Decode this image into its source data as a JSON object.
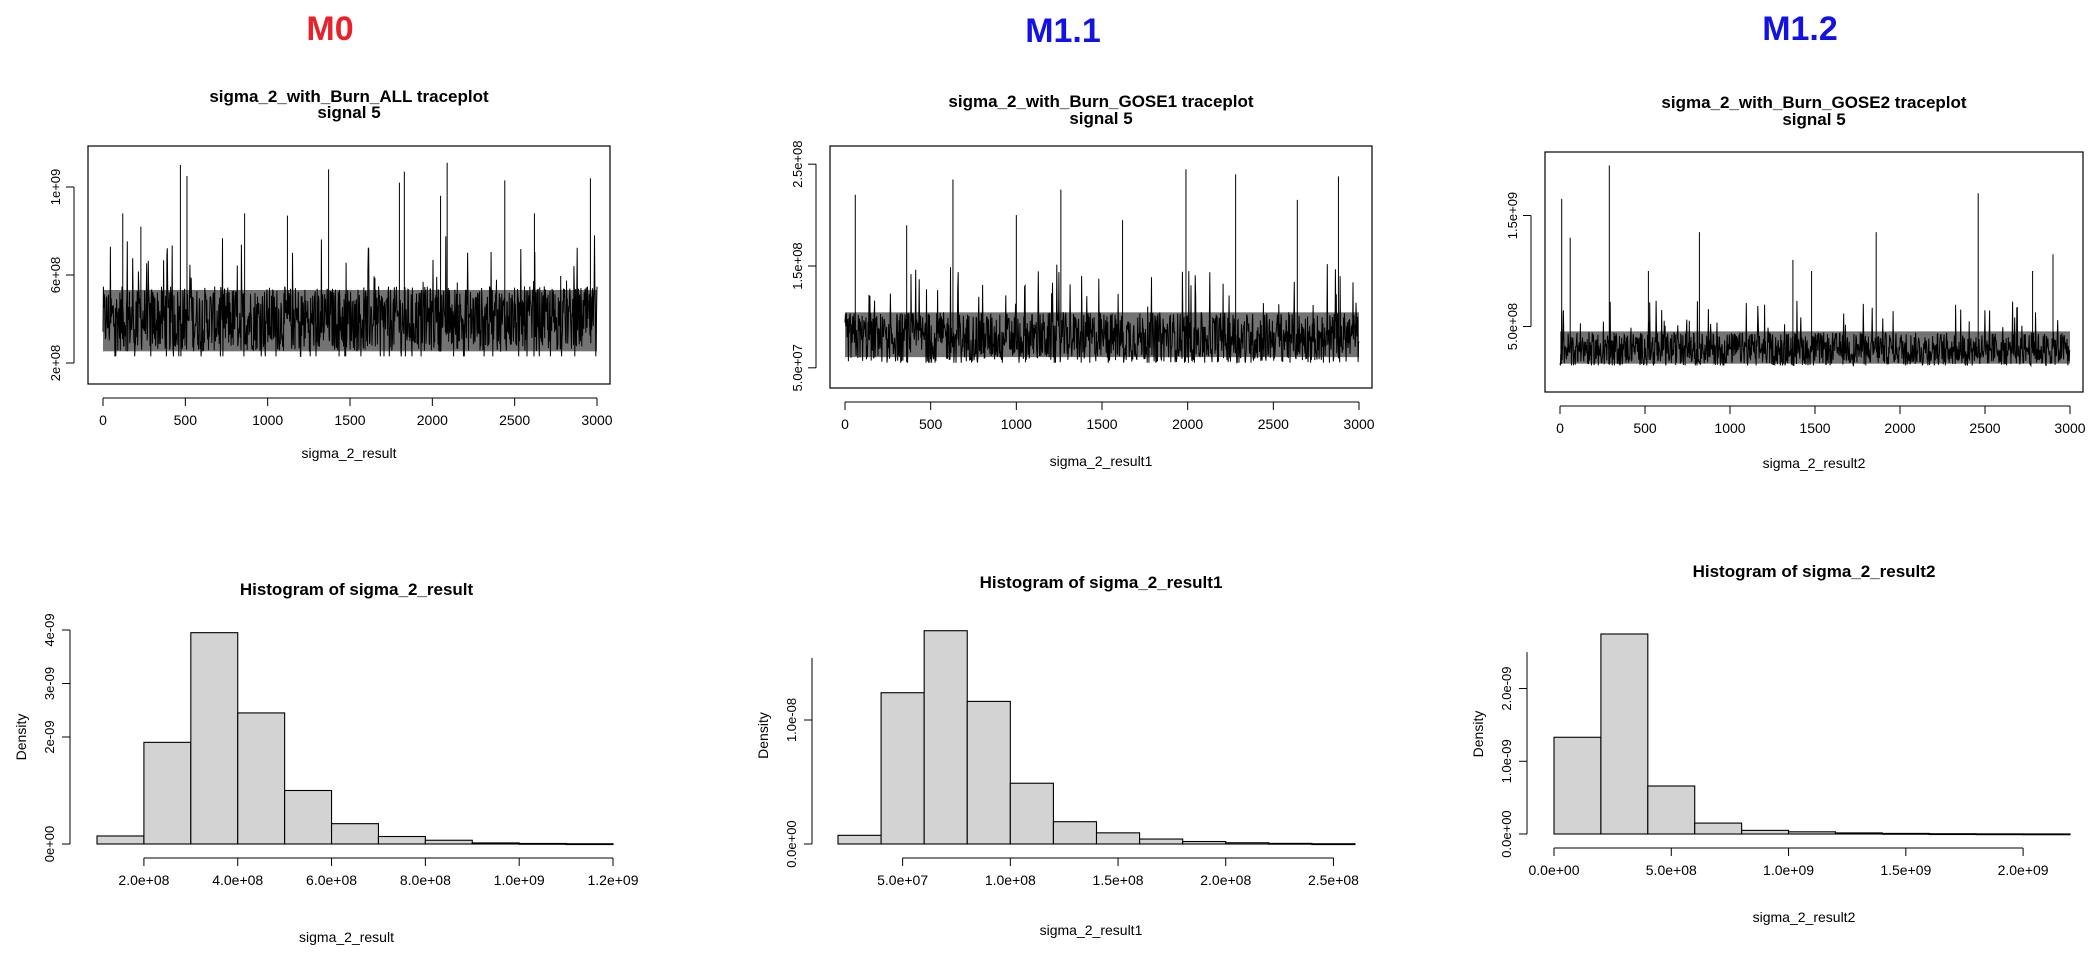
{
  "headers": [
    {
      "text": "M0",
      "color": "#e8212b"
    },
    {
      "text": "M1.1",
      "color": "#1212e6"
    },
    {
      "text": "M1.2",
      "color": "#1212e6"
    }
  ],
  "chart_data": [
    {
      "type": "line",
      "title": "sigma_2_with_Burn_ALL traceplot",
      "subtitle": "signal 5",
      "xlabel": "sigma_2_result",
      "ylabel": "",
      "xlim": [
        0,
        3000
      ],
      "ylim": [
        150000000,
        1150000000
      ],
      "xticks": [
        "0",
        "500",
        "1000",
        "1500",
        "2000",
        "2500",
        "3000"
      ],
      "xtick_values": [
        0,
        500,
        1000,
        1500,
        2000,
        2500,
        3000
      ],
      "yticks": [
        "2e+08",
        "6e+08",
        "1e+09"
      ],
      "ytick_values": [
        200000000,
        600000000,
        1000000000
      ],
      "trace_summary": {
        "n": 3000,
        "center": 400000000,
        "low": 230000000,
        "band_high": 560000000
      },
      "spikes": [
        {
          "x": 120,
          "y": 880000000
        },
        {
          "x": 230,
          "y": 820000000
        },
        {
          "x": 470,
          "y": 1100000000
        },
        {
          "x": 510,
          "y": 1050000000
        },
        {
          "x": 860,
          "y": 880000000
        },
        {
          "x": 1120,
          "y": 870000000
        },
        {
          "x": 1370,
          "y": 1080000000
        },
        {
          "x": 1800,
          "y": 1020000000
        },
        {
          "x": 1830,
          "y": 1070000000
        },
        {
          "x": 2050,
          "y": 960000000
        },
        {
          "x": 2090,
          "y": 1110000000
        },
        {
          "x": 2440,
          "y": 1030000000
        },
        {
          "x": 2620,
          "y": 880000000
        },
        {
          "x": 2960,
          "y": 1040000000
        }
      ]
    },
    {
      "type": "line",
      "title": "sigma_2_with_Burn_GOSE1 traceplot",
      "subtitle": "signal 5",
      "xlabel": "sigma_2_result1",
      "ylabel": "",
      "xlim": [
        0,
        3000
      ],
      "ylim": [
        40000000,
        260000000
      ],
      "xticks": [
        "0",
        "500",
        "1000",
        "1500",
        "2000",
        "2500",
        "3000"
      ],
      "xtick_values": [
        0,
        500,
        1000,
        1500,
        2000,
        2500,
        3000
      ],
      "yticks": [
        "5.0e+07",
        "1.5e+08",
        "2.5e+08"
      ],
      "ytick_values": [
        50000000,
        150000000,
        250000000
      ],
      "trace_summary": {
        "n": 3000,
        "center": 80000000,
        "low": 55000000,
        "band_high": 110000000
      },
      "spikes": [
        {
          "x": 60,
          "y": 220000000
        },
        {
          "x": 360,
          "y": 190000000
        },
        {
          "x": 630,
          "y": 235000000
        },
        {
          "x": 1000,
          "y": 200000000
        },
        {
          "x": 1260,
          "y": 225000000
        },
        {
          "x": 1620,
          "y": 195000000
        },
        {
          "x": 1990,
          "y": 245000000
        },
        {
          "x": 2280,
          "y": 240000000
        },
        {
          "x": 2640,
          "y": 215000000
        },
        {
          "x": 2880,
          "y": 238000000
        }
      ]
    },
    {
      "type": "line",
      "title": "sigma_2_with_Burn_GOSE2 traceplot",
      "subtitle": "signal 5",
      "xlabel": "sigma_2_result2",
      "ylabel": "",
      "xlim": [
        0,
        3000
      ],
      "ylim": [
        0,
        2000000000
      ],
      "xticks": [
        "0",
        "500",
        "1000",
        "1500",
        "2000",
        "2500",
        "3000"
      ],
      "xtick_values": [
        0,
        500,
        1000,
        1500,
        2000,
        2500,
        3000
      ],
      "yticks": [
        "5.0e+08",
        "1.5e+09"
      ],
      "ytick_values": [
        500000000,
        1500000000
      ],
      "trace_summary": {
        "n": 3000,
        "center": 300000000,
        "low": 150000000,
        "band_high": 480000000
      },
      "spikes": [
        {
          "x": 10,
          "y": 1650000000
        },
        {
          "x": 60,
          "y": 1300000000
        },
        {
          "x": 290,
          "y": 1950000000
        },
        {
          "x": 520,
          "y": 1000000000
        },
        {
          "x": 820,
          "y": 1350000000
        },
        {
          "x": 1370,
          "y": 1100000000
        },
        {
          "x": 1480,
          "y": 1000000000
        },
        {
          "x": 1860,
          "y": 1350000000
        },
        {
          "x": 2460,
          "y": 1700000000
        },
        {
          "x": 2780,
          "y": 1000000000
        },
        {
          "x": 2900,
          "y": 1150000000
        }
      ]
    },
    {
      "type": "bar",
      "title": "Histogram of sigma_2_result",
      "xlabel": "sigma_2_result",
      "ylabel": "Density",
      "bin_edges": [
        100000000,
        200000000,
        300000000,
        400000000,
        500000000,
        600000000,
        700000000,
        800000000,
        900000000,
        1000000000,
        1100000000,
        1200000000
      ],
      "values": [
        1.5e-10,
        1.9e-09,
        3.95e-09,
        2.45e-09,
        1e-09,
        3.8e-10,
        1.4e-10,
        7e-11,
        2e-11,
        1e-11,
        5e-12
      ],
      "xlim": [
        100000000,
        1200000000
      ],
      "ylim": [
        0,
        4e-09
      ],
      "xticks": [
        "2.0e+08",
        "4.0e+08",
        "6.0e+08",
        "8.0e+08",
        "1.0e+09",
        "1.2e+09"
      ],
      "xtick_values": [
        200000000,
        400000000,
        600000000,
        800000000,
        1000000000,
        1200000000
      ],
      "yticks": [
        "0e+00",
        "2e-09",
        "3e-09",
        "4e-09"
      ],
      "ytick_values": [
        0,
        2e-09,
        3e-09,
        4e-09
      ],
      "yaxis_extent": [
        0,
        4e-09
      ]
    },
    {
      "type": "bar",
      "title": "Histogram of sigma_2_result1",
      "xlabel": "sigma_2_result1",
      "ylabel": "Density",
      "bin_edges": [
        20000000,
        40000000,
        60000000,
        80000000,
        100000000,
        120000000,
        140000000,
        160000000,
        180000000,
        200000000,
        220000000,
        240000000,
        260000000
      ],
      "values": [
        7e-10,
        1.22e-08,
        1.72e-08,
        1.15e-08,
        4.9e-09,
        1.8e-09,
        9e-10,
        4e-10,
        2e-10,
        1e-10,
        5e-11,
        2e-11
      ],
      "xlim": [
        20000000,
        260000000
      ],
      "ylim": [
        0,
        1.75e-08
      ],
      "xticks": [
        "5.0e+07",
        "1.0e+08",
        "1.5e+08",
        "2.0e+08",
        "2.5e+08"
      ],
      "xtick_values": [
        50000000,
        100000000,
        150000000,
        200000000,
        250000000
      ],
      "yticks": [
        "0.0e+00",
        "1.0e-08"
      ],
      "ytick_values": [
        0,
        1e-08
      ],
      "yaxis_extent": [
        0,
        1.5e-08
      ]
    },
    {
      "type": "bar",
      "title": "Histogram of sigma_2_result2",
      "xlabel": "sigma_2_result2",
      "ylabel": "Density",
      "bin_edges": [
        0,
        200000000,
        400000000,
        600000000,
        800000000,
        1000000000,
        1200000000,
        1400000000,
        1600000000,
        1800000000,
        2000000000,
        2200000000
      ],
      "values": [
        1.33e-09,
        2.75e-09,
        6.6e-10,
        1.5e-10,
        5e-11,
        3e-11,
        1.5e-11,
        8e-12,
        4e-12,
        2e-12,
        1e-12
      ],
      "xlim": [
        0,
        2200000000
      ],
      "ylim": [
        0,
        2.75e-09
      ],
      "xticks": [
        "0.0e+00",
        "5.0e+08",
        "1.0e+09",
        "1.5e+09",
        "2.0e+09"
      ],
      "xtick_values": [
        0,
        500000000,
        1000000000,
        1500000000,
        2000000000
      ],
      "yticks": [
        "0.0e+00",
        "1.0e-09",
        "2.0e-09"
      ],
      "ytick_values": [
        0,
        1e-09,
        2e-09
      ],
      "yaxis_extent": [
        0,
        2.5e-09
      ]
    }
  ]
}
